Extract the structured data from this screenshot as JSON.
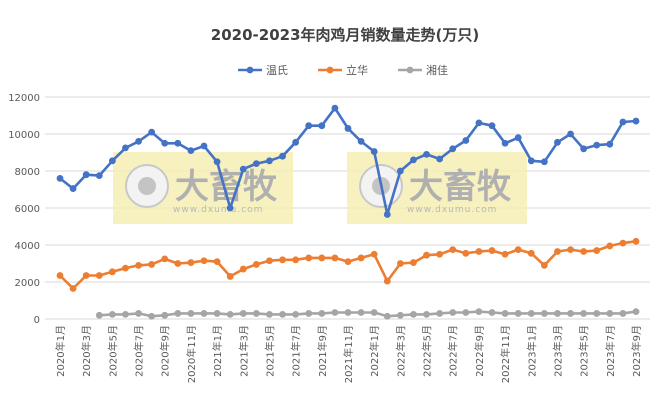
{
  "chart_data": {
    "type": "line",
    "title": "2020-2023年肉鸡月销数量走势(万只)",
    "xlabel": "",
    "ylabel": "",
    "ylim": [
      0,
      12000
    ],
    "yticks": [
      "0",
      "2000",
      "4000",
      "6000",
      "8000",
      "10000",
      "12000"
    ],
    "grid": true,
    "legend_position": "top",
    "categories": [
      "2020年1月",
      "2020年2月",
      "2020年3月",
      "2020年4月",
      "2020年5月",
      "2020年6月",
      "2020年7月",
      "2020年8月",
      "2020年9月",
      "2020年10月",
      "2020年11月",
      "2020年12月",
      "2021年1月",
      "2021年2月",
      "2021年3月",
      "2021年4月",
      "2021年5月",
      "2021年6月",
      "2021年7月",
      "2021年8月",
      "2021年9月",
      "2021年10月",
      "2021年11月",
      "2021年12月",
      "2022年1月",
      "2022年2月",
      "2022年3月",
      "2022年4月",
      "2022年5月",
      "2022年6月",
      "2022年7月",
      "2022年8月",
      "2022年9月",
      "2022年10月",
      "2022年11月",
      "2022年12月",
      "2023年1月",
      "2023年2月",
      "2023年3月",
      "2023年4月",
      "2023年5月",
      "2023年6月",
      "2023年7月",
      "2023年8月",
      "2023年9月"
    ],
    "series": [
      {
        "name": "温氏",
        "color": "#4472C4",
        "values": [
          7600,
          7050,
          7800,
          7750,
          8550,
          9250,
          9600,
          10100,
          9500,
          9500,
          9100,
          9350,
          8500,
          6000,
          8100,
          8400,
          8550,
          8800,
          9550,
          10450,
          10450,
          11400,
          10300,
          9600,
          9050,
          5650,
          8000,
          8600,
          8900,
          8650,
          9200,
          9650,
          10600,
          10450,
          9500,
          9800,
          8550,
          8500,
          9550,
          10000,
          9200,
          9400,
          9450,
          10650,
          10700
        ]
      },
      {
        "name": "立华",
        "color": "#ED7D31",
        "values": [
          2350,
          1650,
          2350,
          2350,
          2550,
          2750,
          2900,
          2950,
          3250,
          3000,
          3050,
          3150,
          3100,
          2300,
          2700,
          2950,
          3150,
          3200,
          3200,
          3300,
          3300,
          3300,
          3100,
          3300,
          3500,
          2050,
          3000,
          3050,
          3450,
          3500,
          3750,
          3550,
          3650,
          3700,
          3500,
          3750,
          3550,
          2900,
          3650,
          3750,
          3650,
          3700,
          3950,
          4100,
          4200
        ]
      },
      {
        "name": "湘佳",
        "color": "#A5A5A5",
        "values": [
          null,
          null,
          null,
          200,
          250,
          250,
          300,
          150,
          200,
          300,
          300,
          300,
          300,
          250,
          300,
          300,
          250,
          250,
          250,
          300,
          300,
          350,
          350,
          350,
          350,
          150,
          200,
          250,
          250,
          300,
          350,
          350,
          400,
          350,
          300,
          300,
          300,
          300,
          300,
          300,
          300,
          300,
          300,
          300,
          400
        ]
      }
    ]
  },
  "watermark": {
    "brand": "大畜牧",
    "url": "www.dxumu.com",
    "color": "#F5EDB0"
  }
}
